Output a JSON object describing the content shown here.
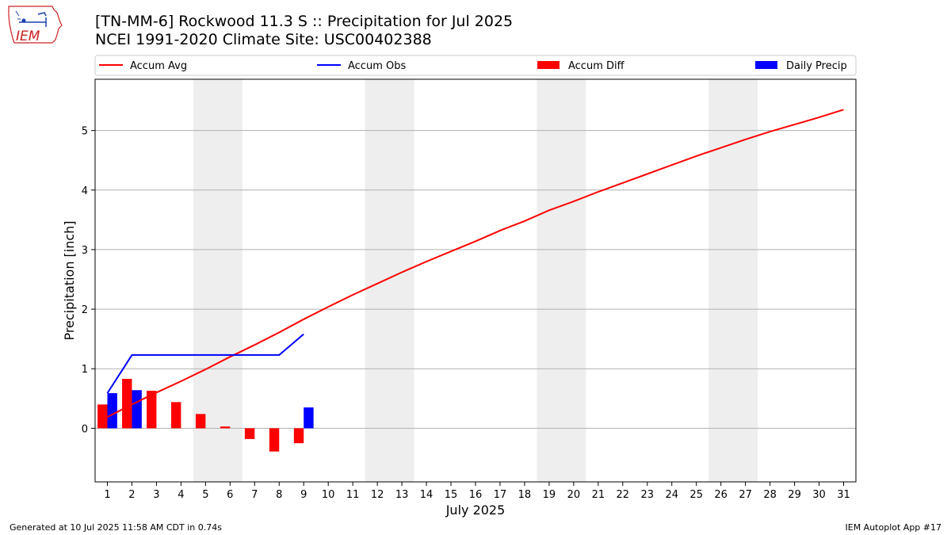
{
  "header": {
    "title": "[TN-MM-6] Rockwood 11.3 S :: Precipitation for Jul 2025",
    "subtitle": "NCEI 1991-2020 Climate Site: USC00402388",
    "logo_text": "IEM"
  },
  "footer": {
    "left": "Generated at 10 Jul 2025 11:58 AM CDT in 0.74s",
    "right": "IEM Autoplot App #17"
  },
  "colors": {
    "accum_avg": "#ff0000",
    "accum_obs": "#0000ff",
    "accum_diff": "#ff0000",
    "daily_precip": "#0000ff",
    "weekend_band": "#eeeeee",
    "grid": "#b0b0b0"
  },
  "chart_data": {
    "type": "line",
    "title": "[TN-MM-6] Rockwood 11.3 S :: Precipitation for Jul 2025",
    "subtitle": "NCEI 1991-2020 Climate Site: USC00402388",
    "xlabel": "July 2025",
    "ylabel": "Precipitation [inch]",
    "xlim": [
      0.5,
      31.5
    ],
    "ylim": [
      -0.9,
      5.86
    ],
    "x": [
      1,
      2,
      3,
      4,
      5,
      6,
      7,
      8,
      9,
      10,
      11,
      12,
      13,
      14,
      15,
      16,
      17,
      18,
      19,
      20,
      21,
      22,
      23,
      24,
      25,
      26,
      27,
      28,
      29,
      30,
      31
    ],
    "x_tick_labels": [
      "1",
      "2",
      "3",
      "4",
      "5",
      "6",
      "7",
      "8",
      "9",
      "10",
      "11",
      "12",
      "13",
      "14",
      "15",
      "16",
      "17",
      "18",
      "19",
      "20",
      "21",
      "22",
      "23",
      "24",
      "25",
      "26",
      "27",
      "28",
      "29",
      "30",
      "31"
    ],
    "y_ticks": [
      0,
      1,
      2,
      3,
      4,
      5
    ],
    "y_tick_labels": [
      "0",
      "1",
      "2",
      "3",
      "4",
      "5"
    ],
    "grid": "horizontal",
    "legend_position": "top",
    "weekend_days": [
      [
        5,
        6
      ],
      [
        12,
        13
      ],
      [
        19,
        20
      ],
      [
        26,
        27
      ]
    ],
    "series": [
      {
        "name": "Accum Avg",
        "type": "line",
        "x": [
          1,
          2,
          3,
          4,
          5,
          6,
          7,
          8,
          9,
          10,
          11,
          12,
          13,
          14,
          15,
          16,
          17,
          18,
          19,
          20,
          21,
          22,
          23,
          24,
          25,
          26,
          27,
          28,
          29,
          30,
          31
        ],
        "values": [
          0.19,
          0.4,
          0.6,
          0.79,
          0.99,
          1.2,
          1.4,
          1.61,
          1.83,
          2.04,
          2.24,
          2.43,
          2.62,
          2.8,
          2.97,
          3.14,
          3.32,
          3.48,
          3.66,
          3.81,
          3.97,
          4.12,
          4.27,
          4.42,
          4.57,
          4.71,
          4.85,
          4.98,
          5.1,
          5.22,
          5.35
        ]
      },
      {
        "name": "Accum Obs",
        "type": "line",
        "x": [
          1,
          2,
          3,
          4,
          5,
          6,
          7,
          8,
          9
        ],
        "values": [
          0.59,
          1.23,
          1.23,
          1.23,
          1.23,
          1.23,
          1.23,
          1.23,
          1.58
        ]
      },
      {
        "name": "Accum Diff",
        "type": "bar",
        "x": [
          1,
          2,
          3,
          4,
          5,
          6,
          7,
          8,
          9
        ],
        "values": [
          0.4,
          0.83,
          0.63,
          0.44,
          0.24,
          0.03,
          -0.18,
          -0.39,
          -0.25
        ]
      },
      {
        "name": "Daily Precip",
        "type": "bar",
        "x": [
          1,
          2,
          3,
          4,
          5,
          6,
          7,
          8,
          9
        ],
        "values": [
          0.59,
          0.64,
          0,
          0,
          0,
          0,
          0,
          0,
          0.35
        ]
      }
    ]
  }
}
